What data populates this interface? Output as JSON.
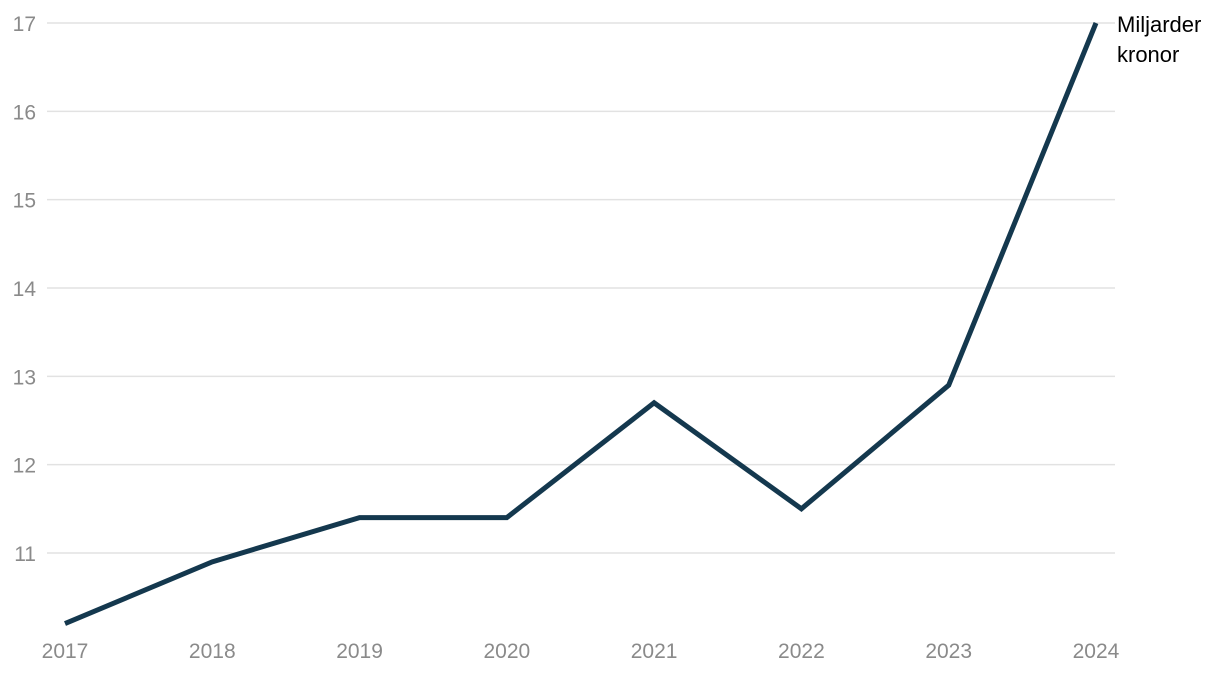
{
  "chart_data": {
    "type": "line",
    "title": "",
    "unit_label": "Miljarder kronor",
    "categories": [
      "2017",
      "2018",
      "2019",
      "2020",
      "2021",
      "2022",
      "2023",
      "2024"
    ],
    "series": [
      {
        "name": "Miljarder kronor",
        "values": [
          10.2,
          10.9,
          11.4,
          11.4,
          12.7,
          11.5,
          12.9,
          17.0
        ]
      }
    ],
    "xlabel": "",
    "ylabel": "",
    "yticks": [
      11,
      12,
      13,
      14,
      15,
      16,
      17
    ],
    "ylim": [
      10.1,
      17
    ],
    "grid": "horizontal-only",
    "legend_position": "none",
    "annotation": "Miljarder kronor",
    "colors": {
      "line": "#14384e",
      "gridline": "#e2e2e2",
      "tick_label": "#8a8a8a",
      "annotation_text": "#000000",
      "background": "#ffffff"
    }
  }
}
